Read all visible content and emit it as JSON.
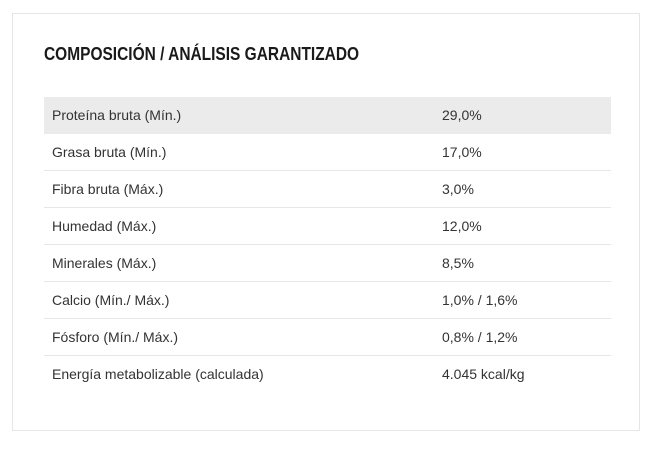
{
  "section": {
    "title": "COMPOSICIÓN / ANÁLISIS GARANTIZADO"
  },
  "analysis": {
    "rows": [
      {
        "label": "Proteína bruta (Mín.)",
        "value": "29,0%"
      },
      {
        "label": "Grasa bruta (Mín.)",
        "value": "17,0%"
      },
      {
        "label": "Fibra bruta (Máx.)",
        "value": "3,0%"
      },
      {
        "label": "Humedad (Máx.)",
        "value": "12,0%"
      },
      {
        "label": "Minerales (Máx.)",
        "value": "8,5%"
      },
      {
        "label": "Calcio (Mín./ Máx.)",
        "value": "1,0% / 1,6%"
      },
      {
        "label": "Fósforo (Mín./ Máx.)",
        "value": "0,8% / 1,2%"
      },
      {
        "label": "Energía metabolizable (calculada)",
        "value": "4.045 kcal/kg"
      }
    ]
  },
  "colors": {
    "highlight_row": "#ebebeb",
    "divider": "#e7e7e7",
    "text": "#333333"
  }
}
